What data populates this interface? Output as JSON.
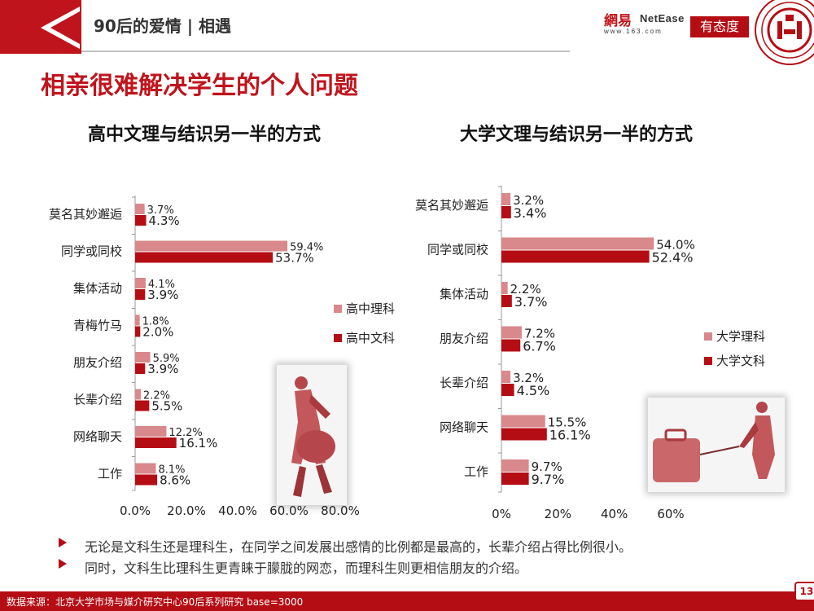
{
  "header": {
    "title": "90后的爱情 | 相遇",
    "logo_cn": "網易",
    "logo_en": "NetEase",
    "logo_url": "www.163.com",
    "logo_youtaidu": "有态度",
    "accent_color": "#c0141c"
  },
  "main_title": "相亲很难解决学生的个人问题",
  "chart_data": [
    {
      "type": "bar",
      "orientation": "horizontal",
      "title": "高中文理与结识另一半的方式",
      "categories": [
        "莫名其妙邂逅",
        "同学或同校",
        "集体活动",
        "青梅竹马",
        "朋友介绍",
        "长辈介绍",
        "网络聊天",
        "工作"
      ],
      "series": [
        {
          "name": "高中理科",
          "color": "#d9888b",
          "values": [
            3.7,
            59.4,
            4.1,
            1.8,
            5.9,
            2.2,
            12.2,
            8.1
          ],
          "labels": [
            "3.7%",
            "59.4%",
            "4.1%",
            "1.8%",
            "5.9%",
            "2.2%",
            "12.2%",
            "8.1%"
          ]
        },
        {
          "name": "高中文科",
          "color": "#b50d14",
          "values": [
            4.3,
            53.7,
            3.9,
            2.0,
            3.9,
            5.5,
            16.1,
            8.6
          ],
          "labels": [
            "4.3%",
            "53.7%",
            "3.9%",
            "2.0%",
            "3.9%",
            "5.5%",
            "16.1%",
            "8.6%"
          ]
        }
      ],
      "xlim": [
        0,
        80
      ],
      "xticks": [
        0,
        20,
        40,
        60,
        80
      ],
      "xtick_labels": [
        "0.0%",
        "20.0%",
        "40.0%",
        "60.0%",
        "80.0%"
      ],
      "legend_position": "right"
    },
    {
      "type": "bar",
      "orientation": "horizontal",
      "title": "大学文理与结识另一半的方式",
      "categories": [
        "莫名其妙邂逅",
        "同学或同校",
        "集体活动",
        "朋友介绍",
        "长辈介绍",
        "网络聊天",
        "工作"
      ],
      "series": [
        {
          "name": "大学理科",
          "color": "#d9888b",
          "values": [
            3.2,
            54.0,
            2.2,
            7.2,
            3.2,
            15.5,
            9.7
          ],
          "labels": [
            "3.2%",
            "54.0%",
            "2.2%",
            "7.2%",
            "3.2%",
            "15.5%",
            "9.7%"
          ]
        },
        {
          "name": "大学文科",
          "color": "#b50d14",
          "values": [
            3.4,
            52.4,
            3.7,
            6.7,
            4.5,
            16.1,
            9.7
          ],
          "labels": [
            "3.4%",
            "52.4%",
            "3.7%",
            "6.7%",
            "4.5%",
            "16.1%",
            "9.7%"
          ]
        }
      ],
      "xlim": [
        0,
        60
      ],
      "xticks": [
        0,
        20,
        40,
        60
      ],
      "xtick_labels": [
        "0%",
        "20%",
        "40%",
        "60%"
      ],
      "legend_position": "right"
    }
  ],
  "bullets": [
    "无论是文科生还是理科生，在同学之间发展出感情的比例都是最高的，长辈介绍占得比例很小。",
    "同时，文科生比理科生更青睐于朦胧的网恋，而理科生则更相信朋友的介绍。"
  ],
  "footer": {
    "source": "数据来源：北京大学市场与媒介研究中心90后系列研究 base=3000",
    "page_number": "13"
  }
}
